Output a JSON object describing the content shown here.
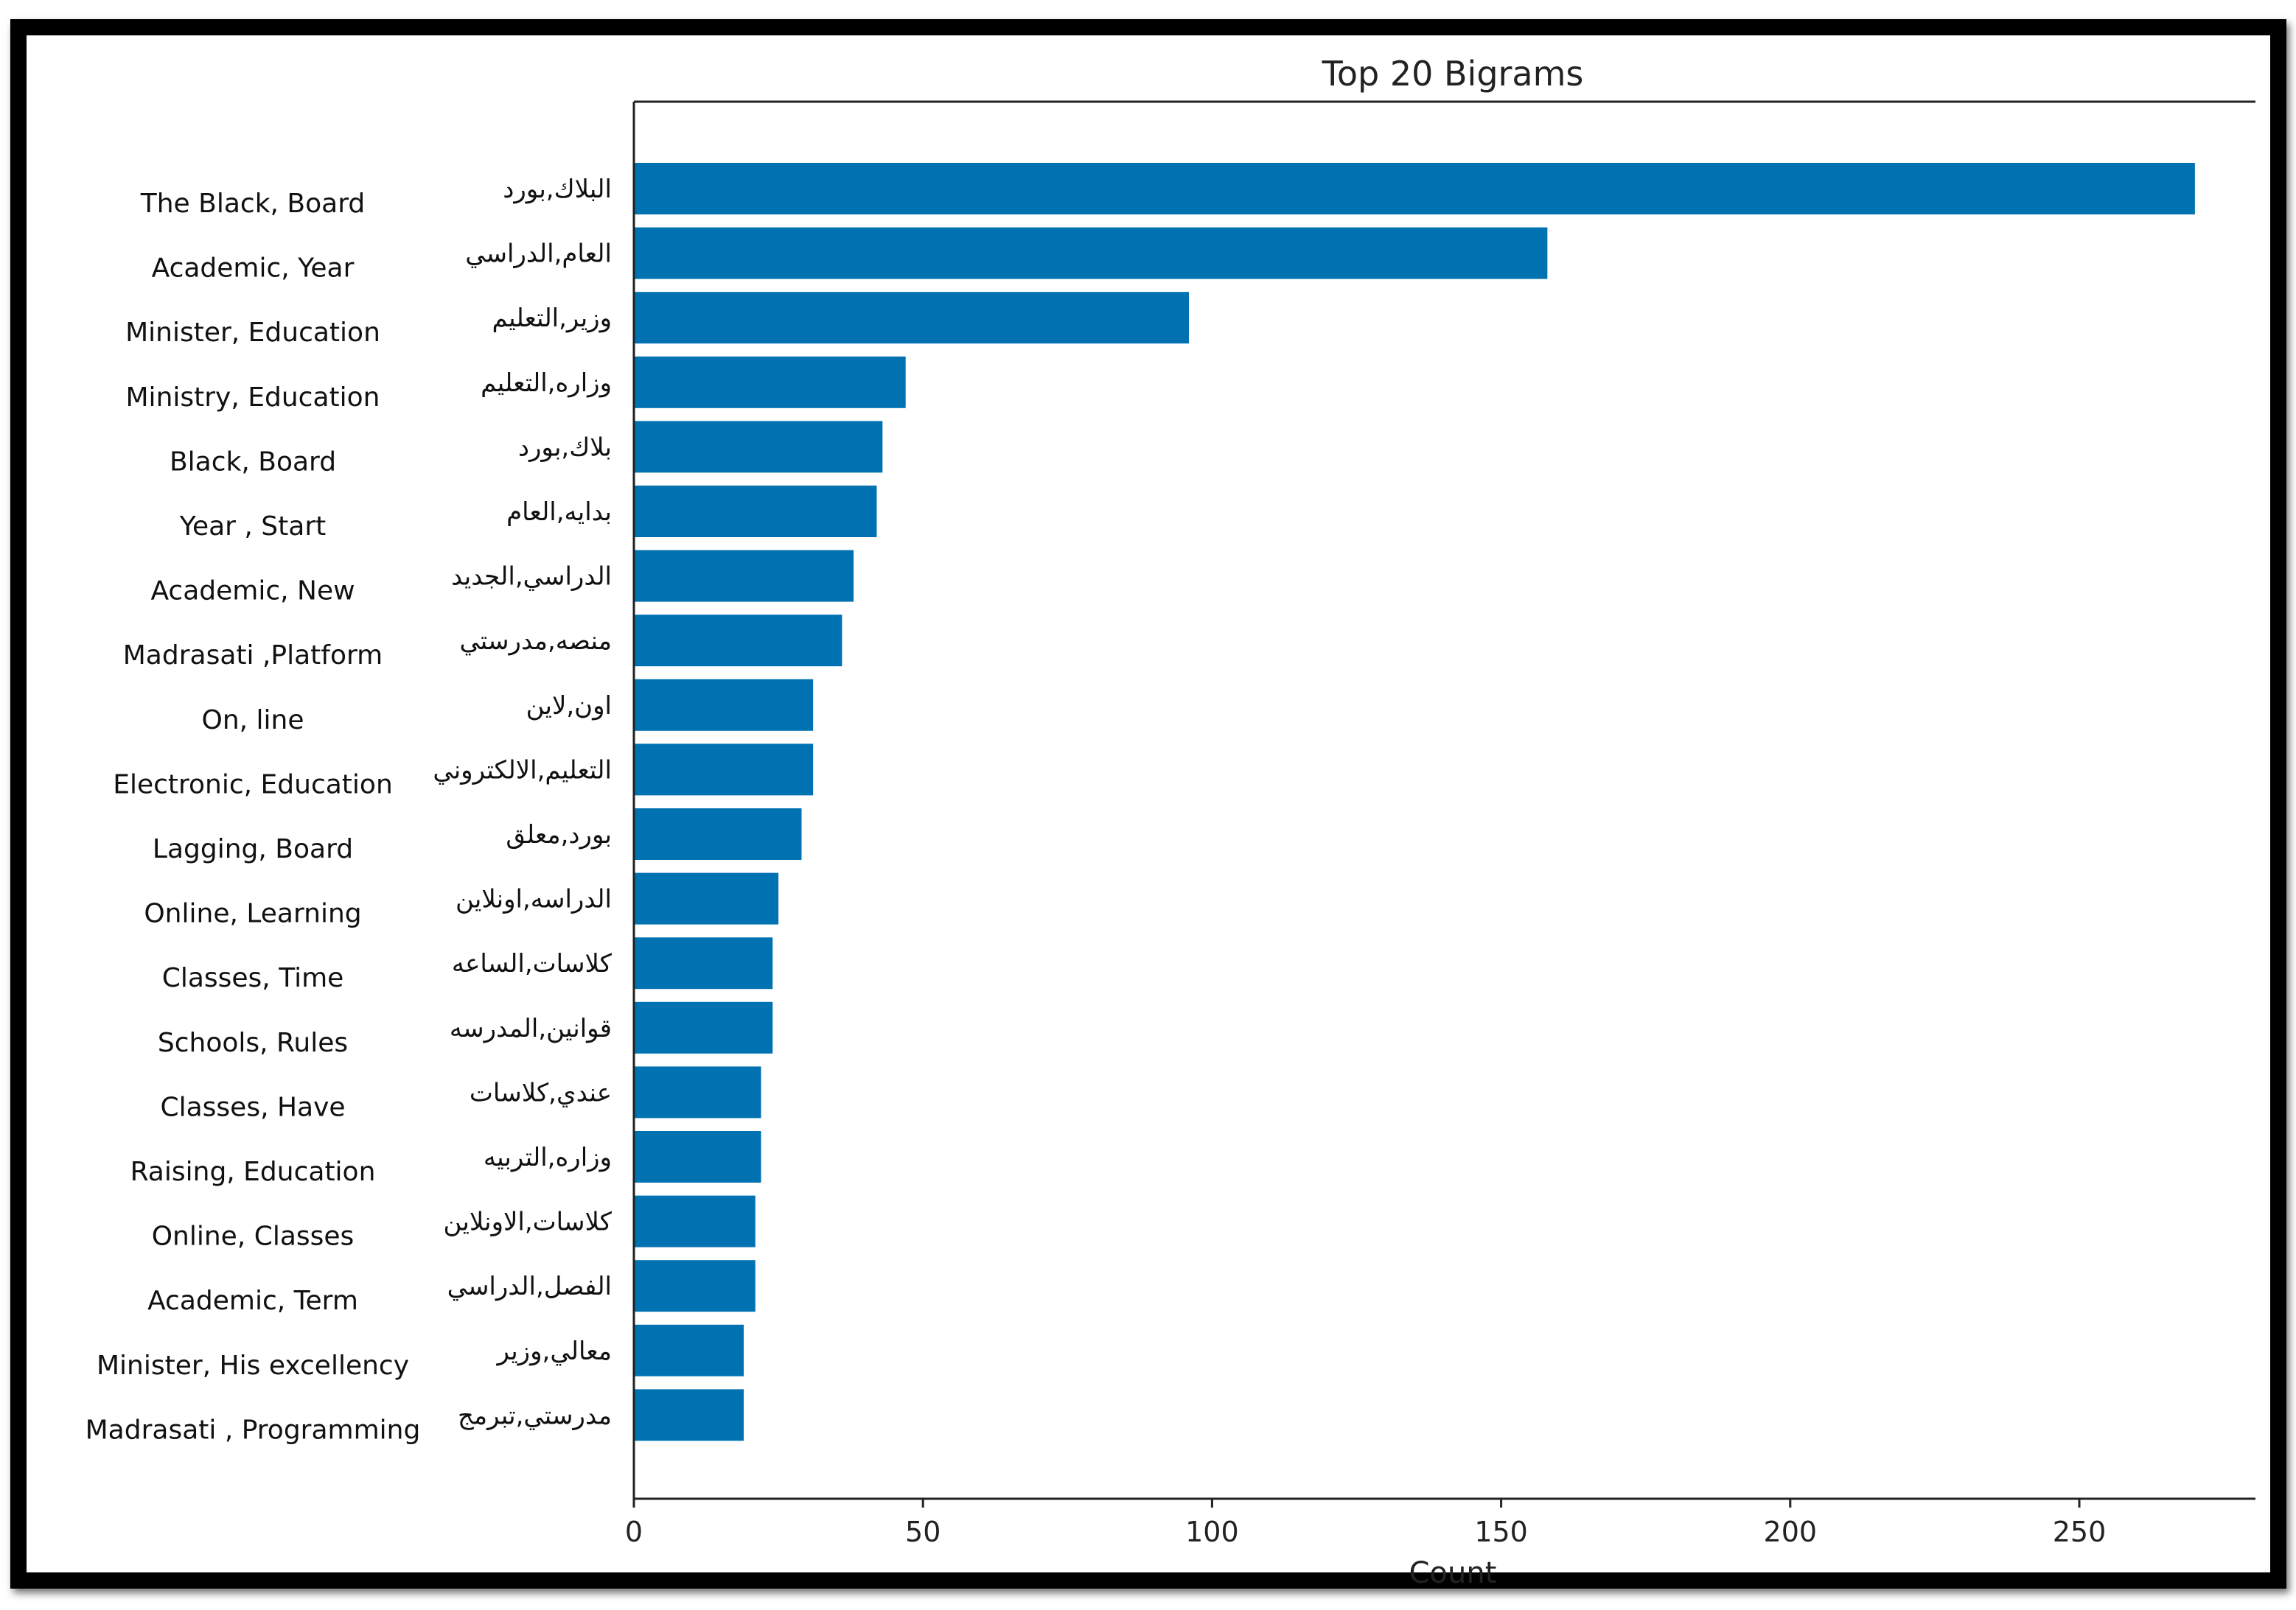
{
  "chart_data": {
    "type": "bar",
    "orientation": "horizontal",
    "title": "Top 20 Bigrams",
    "xlabel": "Count",
    "ylabel": "",
    "xlim": [
      0,
      280
    ],
    "xticks": [
      0,
      50,
      100,
      150,
      200,
      250
    ],
    "bar_color": "#0072B2",
    "categories": [
      "البلاك,بورد",
      "العام,الدراسي",
      "وزير,التعليم",
      "وزاره,التعليم",
      "بلاك,بورد",
      "بدايه,العام",
      "الدراسي,الجديد",
      "منصه,مدرستي",
      "اون,لاين",
      "التعليم,الالكتروني",
      "بورد,معلق",
      "الدراسه,اونلاين",
      "كلاسات,الساعه",
      "قوانين,المدرسه",
      "عندي,كلاسات",
      "وزاره,التربيه",
      "كلاسات,الاونلاين",
      "الفصل,الدراسي",
      "معالي,وزير",
      "مدرستي,تبرمج"
    ],
    "translations": [
      "The Black, Board",
      "Academic, Year",
      "Minister, Education",
      "Ministry, Education",
      "Black, Board",
      "Year , Start",
      "Academic, New",
      "Madrasati ,Platform",
      "On, line",
      "Electronic, Education",
      "Lagging, Board",
      "Online, Learning",
      "Classes, Time",
      "Schools, Rules",
      "Classes, Have",
      "Raising, Education",
      "Online, Classes",
      "Academic, Term",
      "Minister, His excellency",
      "Madrasati , Programming"
    ],
    "values": [
      270,
      158,
      96,
      47,
      43,
      42,
      38,
      36,
      31,
      31,
      29,
      25,
      24,
      24,
      22,
      22,
      21,
      21,
      19,
      19
    ]
  }
}
